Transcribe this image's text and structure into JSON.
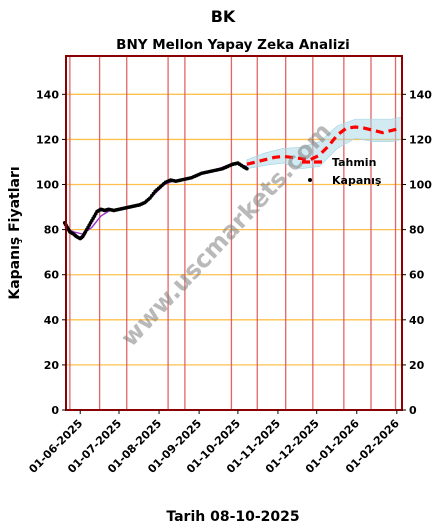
{
  "page": {
    "ticker": "BK",
    "footer": "Tarih 08-10-2025",
    "watermark": "www.uscmarkets.com"
  },
  "chart_data": {
    "type": "line",
    "title": "BNY Mellon Yapay Zeka Analizi",
    "xlabel": "",
    "ylabel": "Kapanış Fiyatları",
    "ylim": [
      0,
      157
    ],
    "xlim": [
      "2025-05-21",
      "2026-02-05"
    ],
    "yticks": [
      0,
      20,
      40,
      60,
      80,
      100,
      120,
      140
    ],
    "xticks": [
      "01-06-2025",
      "01-07-2025",
      "01-08-2025",
      "01-09-2025",
      "01-10-2025",
      "01-11-2025",
      "01-12-2025",
      "01-01-2026",
      "01-02-2026"
    ],
    "vertical_markers": [
      "2025-05-24",
      "2025-06-16",
      "2025-07-07",
      "2025-08-08",
      "2025-08-21",
      "2025-09-26",
      "2025-10-16",
      "2025-11-07",
      "2025-11-28",
      "2025-12-22",
      "2026-01-12",
      "2026-01-31"
    ],
    "legend": {
      "position": "right",
      "entries": [
        "Tahmin",
        "Kapanış"
      ]
    },
    "colors": {
      "frame": "#8b0000",
      "grid": "#ffc04d",
      "vline": "#e06666",
      "forecast": "#ff0000",
      "band": "#add8e6",
      "close": "#000000",
      "smooth": "#9932cc",
      "watermark": "#808080"
    },
    "series": [
      {
        "name": "Kapanış",
        "style": "scatter",
        "x": [
          "2025-05-20",
          "2025-05-22",
          "2025-05-24",
          "2025-05-27",
          "2025-05-29",
          "2025-06-01",
          "2025-06-03",
          "2025-06-05",
          "2025-06-08",
          "2025-06-11",
          "2025-06-14",
          "2025-06-17",
          "2025-06-20",
          "2025-06-23",
          "2025-06-27",
          "2025-07-01",
          "2025-07-05",
          "2025-07-09",
          "2025-07-13",
          "2025-07-17",
          "2025-07-21",
          "2025-07-25",
          "2025-07-29",
          "2025-08-02",
          "2025-08-06",
          "2025-08-10",
          "2025-08-14",
          "2025-08-18",
          "2025-08-22",
          "2025-08-26",
          "2025-08-30",
          "2025-09-03",
          "2025-09-07",
          "2025-09-11",
          "2025-09-15",
          "2025-09-19",
          "2025-09-23",
          "2025-09-27",
          "2025-10-01",
          "2025-10-05",
          "2025-10-08"
        ],
        "values": [
          83,
          81,
          79,
          78,
          77,
          76,
          77,
          79,
          82,
          85,
          88,
          89,
          88.5,
          89,
          88.5,
          89,
          89.5,
          90,
          90.5,
          91,
          92,
          94,
          97,
          99,
          101,
          102,
          101.5,
          102,
          102.5,
          103,
          104,
          105,
          105.5,
          106,
          106.5,
          107,
          108,
          109,
          109.5,
          108,
          107
        ]
      },
      {
        "name": "",
        "style": "smooth",
        "x": [
          "2025-05-20",
          "2025-05-27",
          "2025-06-03",
          "2025-06-10",
          "2025-06-17",
          "2025-06-24",
          "2025-07-01",
          "2025-07-08",
          "2025-07-15",
          "2025-07-22",
          "2025-07-29",
          "2025-08-05",
          "2025-08-12",
          "2025-08-19",
          "2025-08-26",
          "2025-09-02",
          "2025-09-09",
          "2025-09-16",
          "2025-09-23",
          "2025-09-30",
          "2025-10-08"
        ],
        "values": [
          81,
          79,
          78,
          81,
          86,
          88.5,
          89,
          89.5,
          90.5,
          92,
          96,
          100,
          101.5,
          102,
          103,
          104.5,
          106,
          107,
          108.5,
          109,
          108
        ]
      },
      {
        "name": "Tahmin",
        "style": "dashed",
        "x": [
          "2025-10-08",
          "2025-10-15",
          "2025-10-22",
          "2025-10-29",
          "2025-11-05",
          "2025-11-12",
          "2025-11-19",
          "2025-11-26",
          "2025-12-03",
          "2025-12-10",
          "2025-12-17",
          "2025-12-24",
          "2025-12-31",
          "2026-01-07",
          "2026-01-14",
          "2026-01-21",
          "2026-01-28",
          "2026-02-04"
        ],
        "values": [
          109,
          110,
          111,
          112,
          112.5,
          112,
          111.5,
          111,
          113,
          117,
          122,
          125,
          125.5,
          125,
          124,
          123,
          124,
          125
        ]
      }
    ],
    "band": {
      "x": [
        "2025-10-08",
        "2025-10-22",
        "2025-11-05",
        "2025-11-19",
        "2025-12-03",
        "2025-12-17",
        "2025-12-31",
        "2026-01-14",
        "2026-01-28",
        "2026-02-05"
      ],
      "upper": [
        111,
        114,
        116,
        116.5,
        119,
        126,
        129,
        129,
        129,
        130
      ],
      "lower": [
        107,
        108.5,
        109.5,
        107,
        108,
        116,
        120.5,
        119,
        119,
        120
      ]
    }
  }
}
